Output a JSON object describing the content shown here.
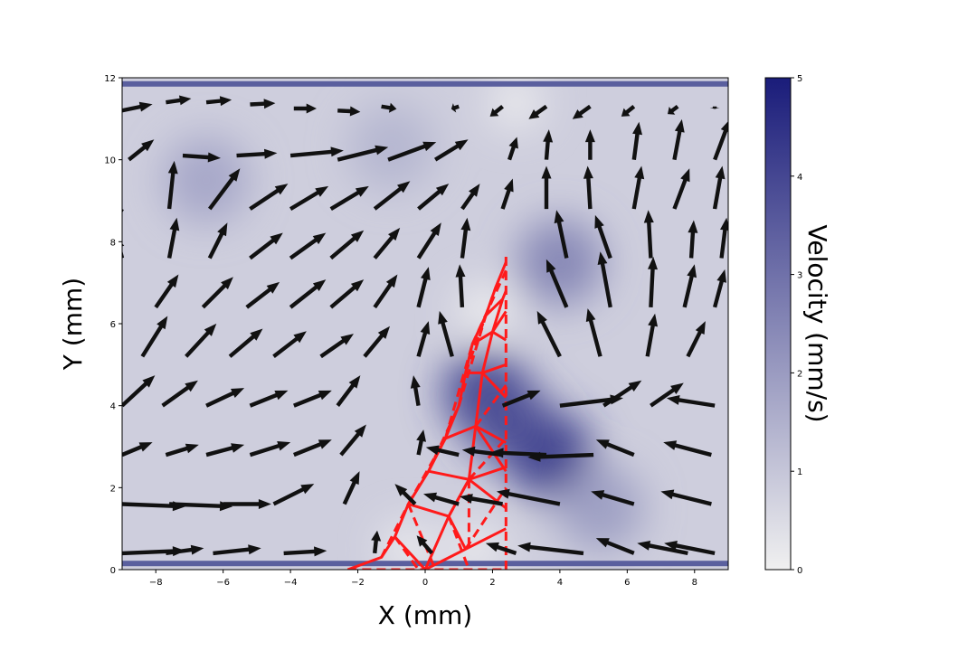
{
  "chart_data": {
    "type": "heatmap",
    "title": "",
    "xlabel": "X (mm)",
    "ylabel": "Y (mm)",
    "xlim": [
      -9,
      9
    ],
    "ylim": [
      0,
      12
    ],
    "x_ticks": [
      -8,
      -6,
      -4,
      -2,
      0,
      2,
      4,
      6,
      8
    ],
    "x_tick_labels": [
      "−8",
      "−6",
      "−4",
      "−2",
      "0",
      "2",
      "4",
      "6",
      "8"
    ],
    "y_ticks": [
      0,
      2,
      4,
      6,
      8,
      10,
      12
    ],
    "y_tick_labels": [
      "0",
      "2",
      "4",
      "6",
      "8",
      "10",
      "12"
    ],
    "colorbar": {
      "label": "Velocity (mm/s)",
      "range": [
        0,
        5
      ],
      "ticks": [
        0,
        1,
        2,
        3,
        4,
        5
      ],
      "tick_labels": [
        "0",
        "1",
        "2",
        "3",
        "4",
        "5"
      ],
      "colors": [
        "#f0f0f0",
        "#1a1c7a"
      ]
    },
    "velocity_hotspots": [
      {
        "x": 1.8,
        "y": 4.3,
        "value": 4.2
      },
      {
        "x": 3.7,
        "y": 2.8,
        "value": 4.5
      },
      {
        "x": 4.0,
        "y": 7.5,
        "value": 2.6
      },
      {
        "x": 2.5,
        "y": 3.6,
        "value": 3.8
      },
      {
        "x": 5.2,
        "y": 1.5,
        "value": 2.0
      },
      {
        "x": -6.5,
        "y": 9.5,
        "value": 1.8
      },
      {
        "x": -1.0,
        "y": 10.3,
        "value": 1.4
      }
    ],
    "velocity_lowspots": [
      {
        "x": 1.8,
        "y": 6.3,
        "value": 0.0
      },
      {
        "x": 2.7,
        "y": 11.4,
        "value": 0.1
      },
      {
        "x": -0.5,
        "y": 0.5,
        "value": 0.1
      },
      {
        "x": 1.5,
        "y": 0.5,
        "value": 0.1
      }
    ],
    "wall_color": "#5a5f9e",
    "wall_y": [
      0.15,
      11.85
    ],
    "quiver_color": "#111111",
    "quiver": [
      {
        "x": -9,
        "y": 11.2,
        "u": 1.2,
        "v": 0.25
      },
      {
        "x": -7.7,
        "y": 11.4,
        "u": 1.0,
        "v": 0.15
      },
      {
        "x": -6.5,
        "y": 11.4,
        "u": 1.0,
        "v": 0.1
      },
      {
        "x": -5.2,
        "y": 11.35,
        "u": 1.0,
        "v": 0.05
      },
      {
        "x": -3.9,
        "y": 11.25,
        "u": 0.9,
        "v": 0.0
      },
      {
        "x": -2.6,
        "y": 11.2,
        "u": 0.9,
        "v": -0.05
      },
      {
        "x": -1.3,
        "y": 11.3,
        "u": 0.6,
        "v": -0.1
      },
      {
        "x": 1.0,
        "y": 11.3,
        "u": -0.3,
        "v": -0.1
      },
      {
        "x": 2.3,
        "y": 11.3,
        "u": -0.5,
        "v": -0.4
      },
      {
        "x": 3.6,
        "y": 11.3,
        "u": -0.7,
        "v": -0.5
      },
      {
        "x": 4.9,
        "y": 11.3,
        "u": -0.7,
        "v": -0.5
      },
      {
        "x": 6.2,
        "y": 11.3,
        "u": -0.5,
        "v": -0.4
      },
      {
        "x": 7.5,
        "y": 11.3,
        "u": -0.4,
        "v": -0.3
      },
      {
        "x": 8.6,
        "y": 11.3,
        "u": 0.0,
        "v": -0.1
      },
      {
        "x": -8.8,
        "y": 10.0,
        "u": 1.0,
        "v": 0.8
      },
      {
        "x": -7.2,
        "y": 10.1,
        "u": 1.5,
        "v": -0.1
      },
      {
        "x": -5.6,
        "y": 10.1,
        "u": 1.6,
        "v": 0.1
      },
      {
        "x": -4.0,
        "y": 10.1,
        "u": 2.1,
        "v": 0.2
      },
      {
        "x": -2.6,
        "y": 10.0,
        "u": 2.0,
        "v": 0.5
      },
      {
        "x": -1.1,
        "y": 10.0,
        "u": 1.9,
        "v": 0.7
      },
      {
        "x": 0.3,
        "y": 10.0,
        "u": 1.3,
        "v": 0.8
      },
      {
        "x": 2.5,
        "y": 10.0,
        "u": 0.3,
        "v": 0.9
      },
      {
        "x": 3.6,
        "y": 10.0,
        "u": 0.1,
        "v": 1.2
      },
      {
        "x": 4.9,
        "y": 10.0,
        "u": 0.0,
        "v": 1.2
      },
      {
        "x": 6.2,
        "y": 10.0,
        "u": 0.2,
        "v": 1.5
      },
      {
        "x": 7.4,
        "y": 10.0,
        "u": 0.3,
        "v": 1.6
      },
      {
        "x": 8.6,
        "y": 10.0,
        "u": 0.6,
        "v": 1.6
      },
      {
        "x": -9,
        "y": 8.8,
        "u": -1.0,
        "v": -1.8
      },
      {
        "x": -7.6,
        "y": 8.8,
        "u": 0.2,
        "v": 1.9
      },
      {
        "x": -6.4,
        "y": 8.8,
        "u": 1.2,
        "v": 1.6
      },
      {
        "x": -5.2,
        "y": 8.8,
        "u": 1.5,
        "v": 1.0
      },
      {
        "x": -4.0,
        "y": 8.8,
        "u": 1.5,
        "v": 0.9
      },
      {
        "x": -2.8,
        "y": 8.8,
        "u": 1.5,
        "v": 0.9
      },
      {
        "x": -1.5,
        "y": 8.8,
        "u": 1.4,
        "v": 1.1
      },
      {
        "x": -0.2,
        "y": 8.8,
        "u": 1.2,
        "v": 1.0
      },
      {
        "x": 1.1,
        "y": 8.8,
        "u": 0.7,
        "v": 1.0
      },
      {
        "x": 2.3,
        "y": 8.8,
        "u": 0.4,
        "v": 1.2
      },
      {
        "x": 3.6,
        "y": 8.8,
        "u": 0.0,
        "v": 1.7
      },
      {
        "x": 4.9,
        "y": 8.8,
        "u": -0.1,
        "v": 1.7
      },
      {
        "x": 6.2,
        "y": 8.8,
        "u": 0.3,
        "v": 1.7
      },
      {
        "x": 7.4,
        "y": 8.8,
        "u": 0.6,
        "v": 1.6
      },
      {
        "x": 8.6,
        "y": 8.8,
        "u": 0.3,
        "v": 1.7
      },
      {
        "x": -9,
        "y": 7.6,
        "u": -0.2,
        "v": 0.8
      },
      {
        "x": -7.6,
        "y": 7.6,
        "u": 0.3,
        "v": 1.6
      },
      {
        "x": -6.4,
        "y": 7.6,
        "u": 0.7,
        "v": 1.4
      },
      {
        "x": -5.2,
        "y": 7.6,
        "u": 1.3,
        "v": 1.0
      },
      {
        "x": -4.0,
        "y": 7.6,
        "u": 1.4,
        "v": 1.0
      },
      {
        "x": -2.8,
        "y": 7.6,
        "u": 1.3,
        "v": 1.1
      },
      {
        "x": -1.5,
        "y": 7.6,
        "u": 1.0,
        "v": 1.2
      },
      {
        "x": -0.2,
        "y": 7.6,
        "u": 0.9,
        "v": 1.4
      },
      {
        "x": 1.1,
        "y": 7.6,
        "u": 0.2,
        "v": 1.6
      },
      {
        "x": 4.2,
        "y": 7.6,
        "u": -0.4,
        "v": 1.9
      },
      {
        "x": 5.5,
        "y": 7.6,
        "u": -0.6,
        "v": 1.7
      },
      {
        "x": 6.7,
        "y": 7.6,
        "u": -0.1,
        "v": 1.9
      },
      {
        "x": 7.9,
        "y": 7.6,
        "u": 0.1,
        "v": 1.5
      },
      {
        "x": 8.8,
        "y": 7.6,
        "u": 0.2,
        "v": 1.6
      },
      {
        "x": -8.0,
        "y": 6.4,
        "u": 0.9,
        "v": 1.3
      },
      {
        "x": -6.6,
        "y": 6.4,
        "u": 1.2,
        "v": 1.2
      },
      {
        "x": -5.3,
        "y": 6.4,
        "u": 1.3,
        "v": 1.0
      },
      {
        "x": -4.0,
        "y": 6.4,
        "u": 1.4,
        "v": 1.1
      },
      {
        "x": -2.8,
        "y": 6.4,
        "u": 1.3,
        "v": 1.1
      },
      {
        "x": -1.5,
        "y": 6.4,
        "u": 0.9,
        "v": 1.3
      },
      {
        "x": -0.2,
        "y": 6.4,
        "u": 0.4,
        "v": 1.6
      },
      {
        "x": 1.1,
        "y": 6.4,
        "u": -0.1,
        "v": 1.7
      },
      {
        "x": 4.2,
        "y": 6.4,
        "u": -0.8,
        "v": 1.9
      },
      {
        "x": 5.5,
        "y": 6.4,
        "u": -0.4,
        "v": 2.2
      },
      {
        "x": 6.7,
        "y": 6.4,
        "u": 0.1,
        "v": 2.0
      },
      {
        "x": 7.7,
        "y": 6.4,
        "u": 0.4,
        "v": 1.7
      },
      {
        "x": 8.6,
        "y": 6.4,
        "u": 0.4,
        "v": 1.5
      },
      {
        "x": -8.4,
        "y": 5.2,
        "u": 1.0,
        "v": 1.6
      },
      {
        "x": -7.1,
        "y": 5.2,
        "u": 1.2,
        "v": 1.3
      },
      {
        "x": -5.8,
        "y": 5.2,
        "u": 1.3,
        "v": 1.1
      },
      {
        "x": -4.5,
        "y": 5.2,
        "u": 1.3,
        "v": 1.0
      },
      {
        "x": -3.1,
        "y": 5.2,
        "u": 1.3,
        "v": 0.9
      },
      {
        "x": -1.8,
        "y": 5.2,
        "u": 1.0,
        "v": 1.2
      },
      {
        "x": -0.2,
        "y": 5.2,
        "u": 0.4,
        "v": 1.4
      },
      {
        "x": 0.8,
        "y": 5.2,
        "u": -0.5,
        "v": 1.8
      },
      {
        "x": 4.0,
        "y": 5.2,
        "u": -0.9,
        "v": 1.8
      },
      {
        "x": 5.2,
        "y": 5.2,
        "u": -0.5,
        "v": 1.9
      },
      {
        "x": 6.6,
        "y": 5.2,
        "u": 0.3,
        "v": 1.7
      },
      {
        "x": 7.8,
        "y": 5.2,
        "u": 0.7,
        "v": 1.4
      },
      {
        "x": -9,
        "y": 4.0,
        "u": 1.3,
        "v": 1.2
      },
      {
        "x": -7.8,
        "y": 4.0,
        "u": 1.4,
        "v": 1.0
      },
      {
        "x": -6.5,
        "y": 4.0,
        "u": 1.5,
        "v": 0.7
      },
      {
        "x": -5.2,
        "y": 4.0,
        "u": 1.5,
        "v": 0.6
      },
      {
        "x": -3.9,
        "y": 4.0,
        "u": 1.5,
        "v": 0.6
      },
      {
        "x": -2.6,
        "y": 4.0,
        "u": 0.9,
        "v": 1.2
      },
      {
        "x": -0.2,
        "y": 4.0,
        "u": -0.2,
        "v": 1.2
      },
      {
        "x": 2.3,
        "y": 4.0,
        "u": 1.5,
        "v": 0.6
      },
      {
        "x": 4.0,
        "y": 4.0,
        "u": 2.5,
        "v": 0.3
      },
      {
        "x": 5.3,
        "y": 4.0,
        "u": 1.5,
        "v": 1.0
      },
      {
        "x": 6.7,
        "y": 4.0,
        "u": 1.3,
        "v": 0.9
      },
      {
        "x": 8.6,
        "y": 4.0,
        "u": -1.9,
        "v": 0.3
      },
      {
        "x": -9,
        "y": 2.8,
        "u": 1.2,
        "v": 0.5
      },
      {
        "x": -7.7,
        "y": 2.8,
        "u": 1.3,
        "v": 0.4
      },
      {
        "x": -6.5,
        "y": 2.8,
        "u": 1.5,
        "v": 0.4
      },
      {
        "x": -5.2,
        "y": 2.8,
        "u": 1.6,
        "v": 0.5
      },
      {
        "x": -3.9,
        "y": 2.8,
        "u": 1.5,
        "v": 0.6
      },
      {
        "x": -2.5,
        "y": 2.8,
        "u": 1.0,
        "v": 1.2
      },
      {
        "x": -0.2,
        "y": 2.8,
        "u": 0.2,
        "v": 1.0
      },
      {
        "x": 1.0,
        "y": 2.8,
        "u": -1.3,
        "v": 0.3
      },
      {
        "x": 2.3,
        "y": 2.8,
        "u": -1.6,
        "v": 0.2
      },
      {
        "x": 3.6,
        "y": 2.8,
        "u": -2.2,
        "v": 0.1
      },
      {
        "x": 5.0,
        "y": 2.8,
        "u": -2.6,
        "v": -0.1
      },
      {
        "x": 6.2,
        "y": 2.8,
        "u": -1.5,
        "v": 0.6
      },
      {
        "x": 8.5,
        "y": 2.8,
        "u": -1.9,
        "v": 0.5
      },
      {
        "x": -9,
        "y": 1.6,
        "u": 2.5,
        "v": -0.1
      },
      {
        "x": -7.6,
        "y": 1.6,
        "u": 2.5,
        "v": -0.1
      },
      {
        "x": -6.0,
        "y": 1.6,
        "u": 1.9,
        "v": 0.0
      },
      {
        "x": -4.5,
        "y": 1.6,
        "u": 1.6,
        "v": 0.8
      },
      {
        "x": -2.4,
        "y": 1.6,
        "u": 0.6,
        "v": 1.3
      },
      {
        "x": -0.3,
        "y": 1.6,
        "u": -0.8,
        "v": 0.8
      },
      {
        "x": 1.0,
        "y": 1.6,
        "u": -1.4,
        "v": 0.4
      },
      {
        "x": 2.3,
        "y": 1.6,
        "u": -1.7,
        "v": 0.3
      },
      {
        "x": 4.0,
        "y": 1.6,
        "u": -2.5,
        "v": 0.5
      },
      {
        "x": 6.2,
        "y": 1.6,
        "u": -1.7,
        "v": 0.5
      },
      {
        "x": 8.5,
        "y": 1.6,
        "u": -2.0,
        "v": 0.5
      },
      {
        "x": -9,
        "y": 0.4,
        "u": 2.5,
        "v": 0.1
      },
      {
        "x": -7.7,
        "y": 0.4,
        "u": 1.5,
        "v": 0.2
      },
      {
        "x": -6.3,
        "y": 0.4,
        "u": 1.9,
        "v": 0.2
      },
      {
        "x": -4.2,
        "y": 0.4,
        "u": 1.7,
        "v": 0.1
      },
      {
        "x": -1.5,
        "y": 0.4,
        "u": 0.1,
        "v": 0.9
      },
      {
        "x": 0.2,
        "y": 0.4,
        "u": -0.6,
        "v": 0.7
      },
      {
        "x": 2.7,
        "y": 0.4,
        "u": -1.2,
        "v": 0.4
      },
      {
        "x": 4.7,
        "y": 0.4,
        "u": -2.6,
        "v": 0.3
      },
      {
        "x": 6.2,
        "y": 0.4,
        "u": -1.5,
        "v": 0.6
      },
      {
        "x": 7.8,
        "y": 0.4,
        "u": -2.0,
        "v": 0.4
      },
      {
        "x": 8.6,
        "y": 0.4,
        "u": -2.0,
        "v": 0.4
      }
    ],
    "overlay_color": "#ff1a1a",
    "overlay_outline_solid": [
      [
        [
          -2.3,
          0.0
        ],
        [
          -1.3,
          0.3
        ],
        [
          -0.9,
          0.8
        ],
        [
          -0.5,
          1.6
        ],
        [
          0.1,
          2.4
        ],
        [
          0.6,
          3.2
        ],
        [
          1.0,
          4.0
        ],
        [
          1.2,
          4.8
        ],
        [
          1.4,
          5.5
        ],
        [
          1.8,
          6.2
        ],
        [
          2.1,
          6.9
        ],
        [
          2.4,
          7.5
        ]
      ],
      [
        [
          -0.5,
          1.6
        ],
        [
          0.7,
          1.3
        ],
        [
          1.3,
          2.2
        ],
        [
          1.5,
          3.5
        ],
        [
          1.7,
          4.8
        ],
        [
          2.0,
          5.8
        ],
        [
          2.3,
          6.6
        ]
      ],
      [
        [
          0.1,
          2.4
        ],
        [
          1.3,
          2.2
        ],
        [
          2.4,
          2.5
        ]
      ],
      [
        [
          0.6,
          3.2
        ],
        [
          1.5,
          3.5
        ],
        [
          2.4,
          3.1
        ]
      ],
      [
        [
          1.2,
          4.8
        ],
        [
          1.7,
          4.8
        ],
        [
          2.4,
          4.2
        ]
      ],
      [
        [
          1.4,
          5.5
        ],
        [
          2.0,
          5.8
        ],
        [
          2.4,
          5.6
        ]
      ],
      [
        [
          1.8,
          6.2
        ],
        [
          2.3,
          6.6
        ],
        [
          2.4,
          6.8
        ]
      ],
      [
        [
          -0.9,
          0.8
        ],
        [
          0.0,
          0.0
        ],
        [
          0.7,
          1.3
        ]
      ],
      [
        [
          0.0,
          0.0
        ],
        [
          1.2,
          0.5
        ],
        [
          2.4,
          1.0
        ]
      ],
      [
        [
          0.7,
          1.3
        ],
        [
          1.2,
          0.5
        ]
      ],
      [
        [
          1.3,
          2.2
        ],
        [
          2.4,
          1.5
        ]
      ],
      [
        [
          1.5,
          3.5
        ],
        [
          2.4,
          2.4
        ]
      ],
      [
        [
          1.7,
          4.8
        ],
        [
          2.4,
          5.0
        ]
      ],
      [
        [
          2.0,
          5.8
        ],
        [
          2.4,
          6.3
        ]
      ]
    ],
    "overlay_outline_dashed": [
      [
        [
          -2.3,
          0.0
        ],
        [
          2.4,
          0.0
        ]
      ],
      [
        [
          2.4,
          0.0
        ],
        [
          2.4,
          7.7
        ]
      ],
      [
        [
          -1.3,
          0.3
        ],
        [
          -0.5,
          1.6
        ]
      ],
      [
        [
          -0.9,
          0.8
        ],
        [
          -0.2,
          0.0
        ]
      ],
      [
        [
          -0.5,
          1.6
        ],
        [
          0.6,
          3.2
        ]
      ],
      [
        [
          0.1,
          2.4
        ],
        [
          1.0,
          4.0
        ]
      ],
      [
        [
          0.6,
          3.2
        ],
        [
          1.4,
          5.5
        ]
      ],
      [
        [
          1.0,
          4.0
        ],
        [
          1.8,
          6.2
        ]
      ],
      [
        [
          1.2,
          4.8
        ],
        [
          2.1,
          6.9
        ]
      ],
      [
        [
          1.4,
          5.5
        ],
        [
          2.4,
          7.3
        ]
      ],
      [
        [
          0.7,
          1.3
        ],
        [
          1.3,
          0.0
        ]
      ],
      [
        [
          1.3,
          2.2
        ],
        [
          1.3,
          0.5
        ]
      ],
      [
        [
          0.7,
          1.3
        ],
        [
          1.3,
          2.2
        ]
      ],
      [
        [
          1.5,
          3.5
        ],
        [
          2.4,
          4.5
        ]
      ],
      [
        [
          1.3,
          2.2
        ],
        [
          2.4,
          3.2
        ]
      ],
      [
        [
          -0.5,
          1.6
        ],
        [
          0.3,
          0.0
        ]
      ],
      [
        [
          1.2,
          0.5
        ],
        [
          2.4,
          2.0
        ]
      ]
    ]
  }
}
